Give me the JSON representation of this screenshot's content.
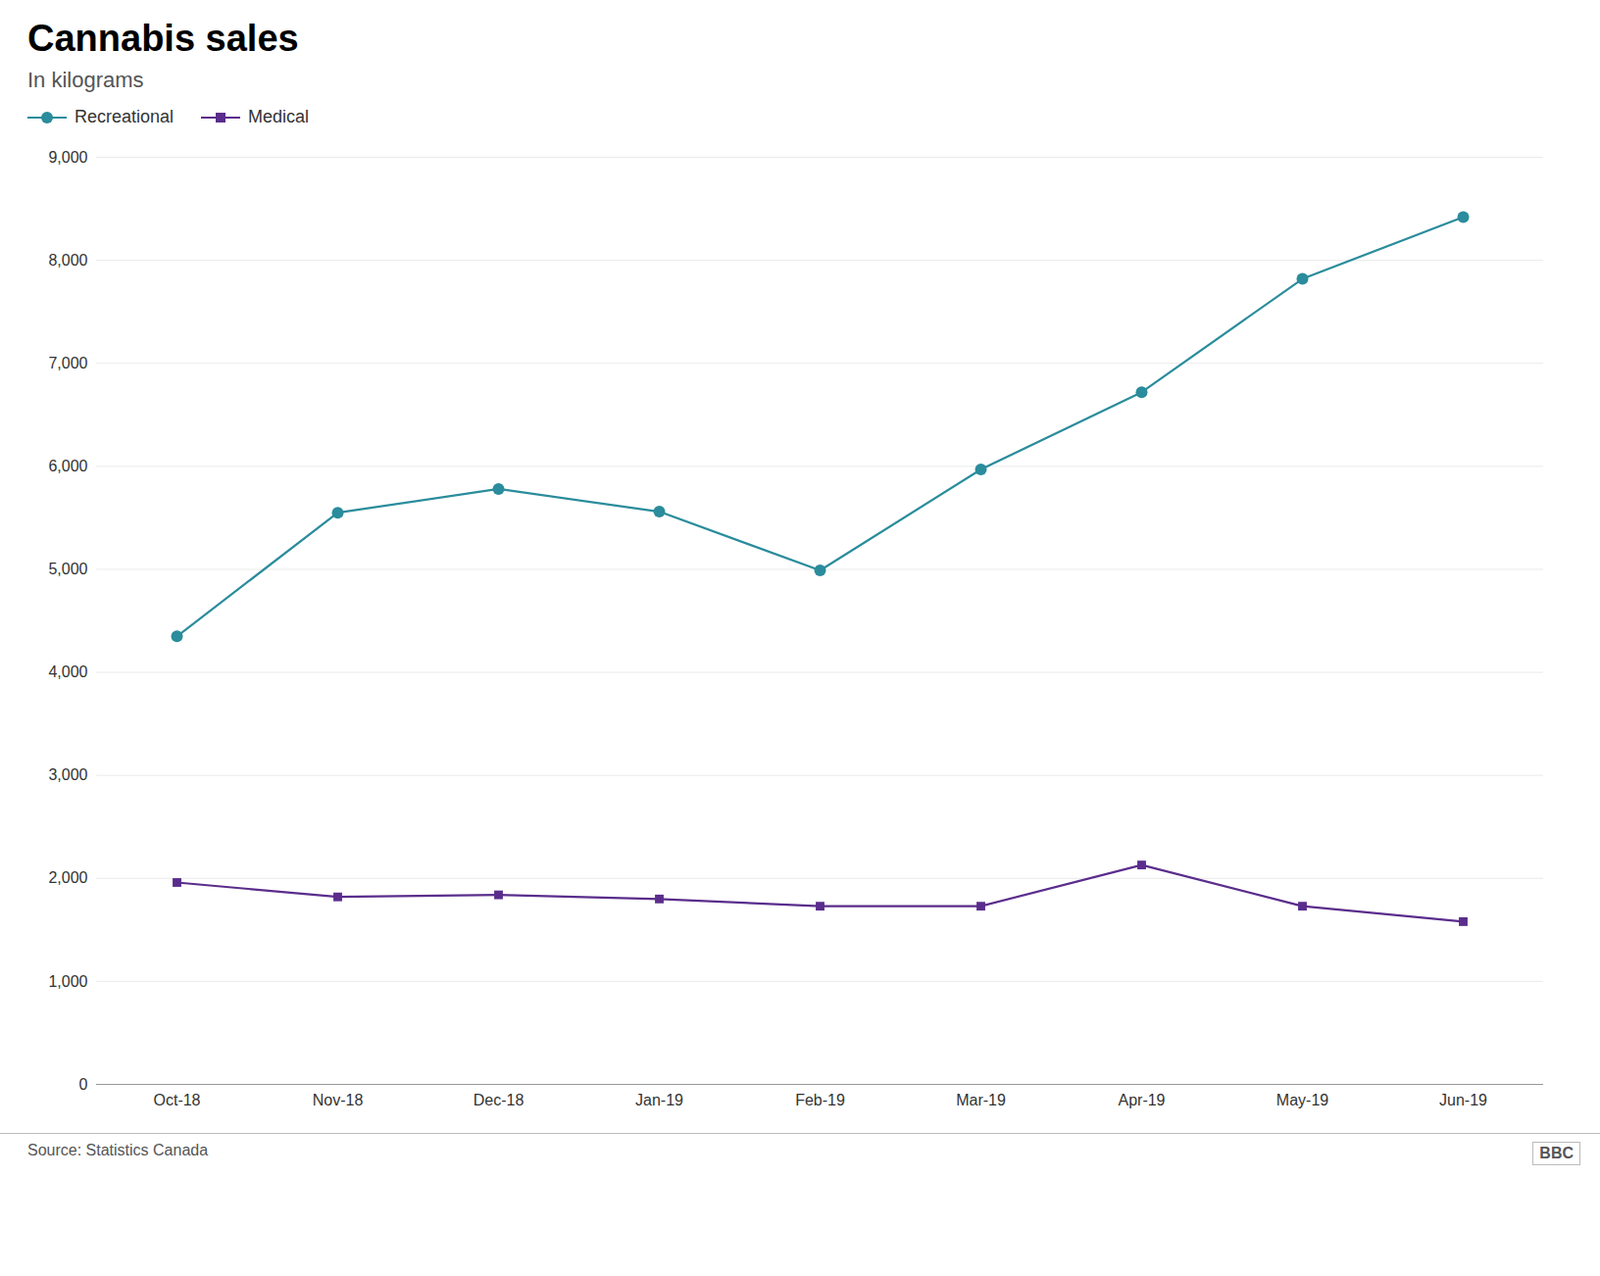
{
  "chart_data": {
    "type": "line",
    "title": "Cannabis sales",
    "subtitle": "In kilograms",
    "source": "Source: Statistics Canada",
    "credit": "BBC",
    "categories": [
      "Oct-18",
      "Nov-18",
      "Dec-18",
      "Jan-19",
      "Feb-19",
      "Mar-19",
      "Apr-19",
      "May-19",
      "Jun-19"
    ],
    "series": [
      {
        "name": "Recreational",
        "color": "#2a8c9c",
        "marker": "circle",
        "values": [
          4350,
          5550,
          5780,
          5560,
          4990,
          5970,
          6720,
          7820,
          8420
        ]
      },
      {
        "name": "Medical",
        "color": "#5a2d8c",
        "marker": "square",
        "values": [
          1960,
          1820,
          1840,
          1800,
          1730,
          1730,
          2130,
          1730,
          1580
        ]
      }
    ],
    "ylim": [
      0,
      9000
    ],
    "yticks": [
      0,
      {
        "value": 1000,
        "label": "1,000"
      },
      {
        "value": 2000,
        "label": "2,000"
      },
      {
        "value": 3000,
        "label": "3,000"
      },
      {
        "value": 4000,
        "label": "4,000"
      },
      {
        "value": 5000,
        "label": "5,000"
      },
      {
        "value": 6000,
        "label": "6,000"
      },
      {
        "value": 7000,
        "label": "7,000"
      },
      {
        "value": 8000,
        "label": "8,000"
      },
      {
        "value": 9000,
        "label": "9,000"
      }
    ],
    "grid": true,
    "legend": "top left"
  }
}
